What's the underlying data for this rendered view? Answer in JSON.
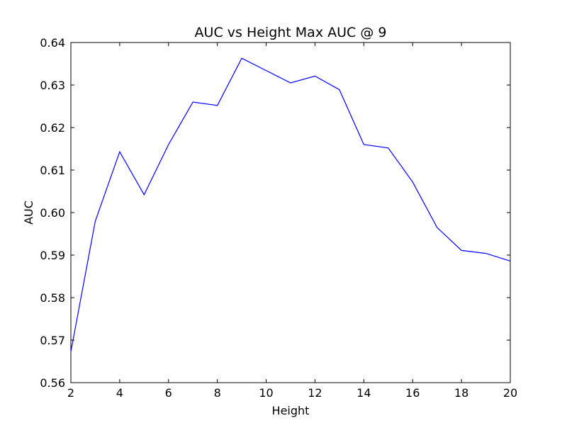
{
  "chart_data": {
    "type": "line",
    "title": "AUC vs Height Max AUC @ 9",
    "xlabel": "Height",
    "ylabel": "AUC",
    "xlim": [
      2,
      20
    ],
    "ylim": [
      0.56,
      0.64
    ],
    "xticks": [
      2,
      4,
      6,
      8,
      10,
      12,
      14,
      16,
      18,
      20
    ],
    "xtick_labels": [
      "2",
      "4",
      "6",
      "8",
      "10",
      "12",
      "14",
      "16",
      "18",
      "20"
    ],
    "yticks": [
      0.56,
      0.57,
      0.58,
      0.59,
      0.6,
      0.61,
      0.62,
      0.63,
      0.64
    ],
    "ytick_labels": [
      "0.56",
      "0.57",
      "0.58",
      "0.59",
      "0.60",
      "0.61",
      "0.62",
      "0.63",
      "0.64"
    ],
    "grid": false,
    "series": [
      {
        "color": "#0000ff",
        "x": [
          2,
          3,
          4,
          5,
          6,
          7,
          8,
          9,
          10,
          11,
          12,
          13,
          14,
          15,
          16,
          17,
          18,
          19,
          20
        ],
        "y": [
          0.5673,
          0.598,
          0.6143,
          0.6042,
          0.616,
          0.626,
          0.6252,
          0.6363,
          0.6334,
          0.6305,
          0.6321,
          0.6289,
          0.616,
          0.6152,
          0.6072,
          0.5965,
          0.5911,
          0.5904,
          0.5886
        ]
      }
    ]
  }
}
